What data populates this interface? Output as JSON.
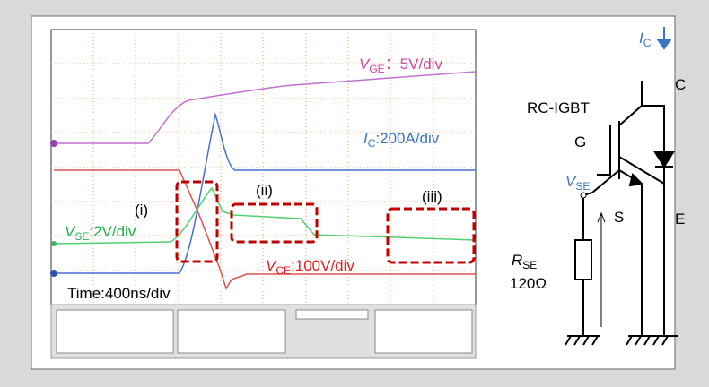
{
  "scope": {
    "vge": {
      "main": "V",
      "sub": "GE",
      "rest": "：5V/div"
    },
    "ic": {
      "main": "I",
      "sub": "C",
      "rest": ":200A/div"
    },
    "vse": {
      "main": "V",
      "sub": "SE",
      "rest": ":2V/div"
    },
    "vce": {
      "main": "V",
      "sub": "CE",
      "rest": ":100V/div"
    },
    "regions": [
      "(i)",
      "(ii)",
      "(iii)"
    ],
    "time": "Time:400ns/div"
  },
  "circuit": {
    "ic": {
      "main": "I",
      "sub": "C"
    },
    "device": "RC-IGBT",
    "collector": "C",
    "gate": "G",
    "vse": {
      "main": "V",
      "sub": "SE"
    },
    "sense": "S",
    "emitter": "E",
    "rse": {
      "main": "R",
      "sub": "SE"
    },
    "resistance": "120Ω"
  }
}
